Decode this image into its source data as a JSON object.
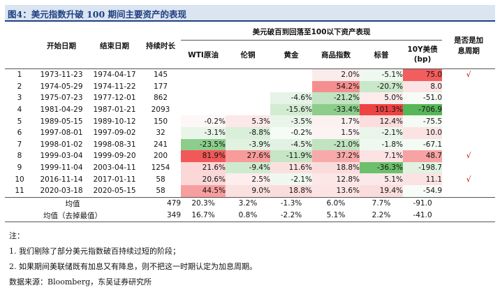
{
  "title": "图4：美元指数升破 100 期间主要资产的表现",
  "headers": {
    "start": "开始日期",
    "end": "结束日期",
    "duration": "持续时长",
    "group": "美元破百到回落至100以下资产表现",
    "assets": [
      "WTI原油",
      "伦铜",
      "黄金",
      "商品指数",
      "标普",
      "10Y美债\n(bp)"
    ],
    "flag": "是否是加\n息周期"
  },
  "rows": [
    {
      "idx": "1",
      "start": "1973-11-23",
      "end": "1974-04-17",
      "days": "145",
      "vals": [
        "",
        "",
        "",
        "2.0%",
        "-5.1%",
        "75.0"
      ],
      "flag": "√"
    },
    {
      "idx": "2",
      "start": "1974-05-29",
      "end": "1974-11-22",
      "days": "177",
      "vals": [
        "",
        "",
        "",
        "54.2%",
        "-20.7%",
        "8.0"
      ],
      "flag": ""
    },
    {
      "idx": "3",
      "start": "1975-07-23",
      "end": "1977-12-01",
      "days": "862",
      "vals": [
        "",
        "",
        "-4.6%",
        "-21.2%",
        "5.0%",
        "-51.0"
      ],
      "flag": ""
    },
    {
      "idx": "4",
      "start": "1981-04-29",
      "end": "1987-01-21",
      "days": "2093",
      "vals": [
        "",
        "",
        "-15.6%",
        "-33.4%",
        "101.3%",
        "-706.9"
      ],
      "flag": ""
    },
    {
      "idx": "5",
      "start": "1989-05-15",
      "end": "1989-10-12",
      "days": "150",
      "vals": [
        "-0.2%",
        "5.3%",
        "-3.5%",
        "1.7%",
        "12.4%",
        "-75.5"
      ],
      "flag": ""
    },
    {
      "idx": "6",
      "start": "1997-08-01",
      "end": "1997-09-02",
      "days": "32",
      "vals": [
        "-3.1%",
        "-8.8%",
        "-0.2%",
        "1.5%",
        "-2.1%",
        "10.0"
      ],
      "flag": ""
    },
    {
      "idx": "7",
      "start": "1998-01-02",
      "end": "1998-08-31",
      "days": "241",
      "vals": [
        "-23.5%",
        "-3.9%",
        "-4.5%",
        "-21.0%",
        "-1.8%",
        "-67.1"
      ],
      "flag": ""
    },
    {
      "idx": "8",
      "start": "1999-03-04",
      "end": "1999-09-20",
      "days": "200",
      "vals": [
        "81.9%",
        "27.6%",
        "-11.9%",
        "37.2%",
        "7.1%",
        "48.7"
      ],
      "flag": "√"
    },
    {
      "idx": "9",
      "start": "1999-11-04",
      "end": "2003-04-11",
      "days": "1254",
      "vals": [
        "21.6%",
        "-9.4%",
        "11.6%",
        "18.8%",
        "-36.3%",
        "-198.7"
      ],
      "flag": ""
    },
    {
      "idx": "10",
      "start": "2016-11-14",
      "end": "2017-01-11",
      "days": "58",
      "vals": [
        "20.6%",
        "2.5%",
        "-2.1%",
        "12.8%",
        "5.1%",
        "11.1"
      ],
      "flag": "√"
    },
    {
      "idx": "11",
      "start": "2020-03-18",
      "end": "2020-05-15",
      "days": "58",
      "vals": [
        "44.5%",
        "9.0%",
        "18.8%",
        "13.6%",
        "19.4%",
        "-54.9"
      ],
      "flag": ""
    }
  ],
  "colors": [
    [
      "",
      "",
      "",
      "#fbecec",
      "#eff8ef",
      "#f25d5d"
    ],
    [
      "",
      "",
      "",
      "#f58f8f",
      "#c9e7c9",
      "#fce4e4"
    ],
    [
      "",
      "",
      "#e6f3e6",
      "#c2e4c2",
      "#fcebeb",
      "#f6fbf6"
    ],
    [
      "",
      "",
      "#d2ecd2",
      "#8ccd8c",
      "#ee4343",
      "#57b657"
    ],
    [
      "#fdf7f7",
      "#fce8e8",
      "#eaf5ea",
      "#fcf1f1",
      "#fcdddd",
      "#f4faf4"
    ],
    [
      "#e9f5e9",
      "#d9efd9",
      "#f5fbf5",
      "#fcf3f3",
      "#eaf5ea",
      "#fbe3e3"
    ],
    [
      "#8ccd8c",
      "#e1f2e1",
      "#e2f2e2",
      "#c0e3c0",
      "#eff8ef",
      "#f4faf4"
    ],
    [
      "#f25858",
      "#f79b9b",
      "#c6e6c6",
      "#f8aaaa",
      "#fbe3e3",
      "#f7a3a3"
    ],
    [
      "#fbd7d7",
      "#cfebcf",
      "#fbe0e0",
      "#fbdcdc",
      "#6cc06c",
      "#e1f2e1"
    ],
    [
      "#fbd8d8",
      "#fdeded",
      "#eff8ef",
      "#fce6e6",
      "#fbe9e9",
      "#fbe3e3"
    ],
    [
      "#f79e9e",
      "#fbe0e0",
      "#fbdcdc",
      "#fce4e4",
      "#fbdcdc",
      "#f8fcf8"
    ]
  ],
  "summary": [
    {
      "label": "均值",
      "days": "479",
      "vals": [
        "20.3%",
        "3.2%",
        "-1.3%",
        "6.0%",
        "7.7%",
        "-91.0"
      ]
    },
    {
      "label": "均值（去掉最值）",
      "days": "349",
      "vals": [
        "16.7%",
        "0.8%",
        "-2.2%",
        "5.1%",
        "2.2%",
        "-41.0"
      ]
    }
  ],
  "notes": [
    "注：",
    "1. 我们剔除了部分美元指数破百持续过短的阶段；",
    "2. 如果期间美联储既有加息又有降息，则不把这一时期认定为加息周期。",
    "数据来源：Bloomberg，东吴证券研究所"
  ]
}
